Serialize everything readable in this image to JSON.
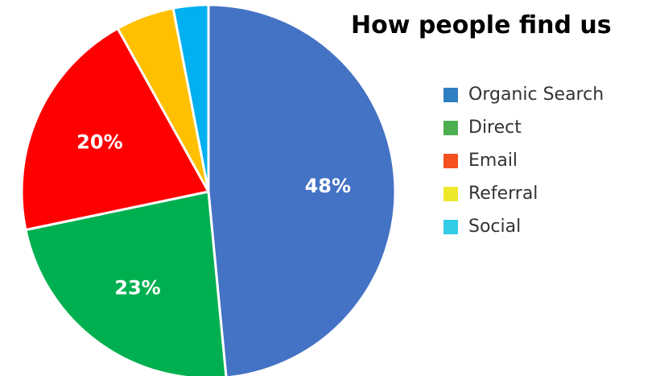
{
  "chart_data": {
    "type": "pie",
    "title": "How people find us",
    "categories": [
      "Organic Search",
      "Direct",
      "Email",
      "Referral",
      "Social"
    ],
    "values": [
      48,
      23,
      20,
      5,
      3
    ],
    "data_labels": [
      "48%",
      "23%",
      "20%",
      "",
      ""
    ],
    "colors": [
      "#4472C4",
      "#00B050",
      "#FF0000",
      "#FFC000",
      "#00B0F0"
    ],
    "legend_colors": [
      "#2F7EC1",
      "#4CAF50",
      "#F4511E",
      "#EEE82C",
      "#33CCE6"
    ],
    "legend_position": "right"
  }
}
